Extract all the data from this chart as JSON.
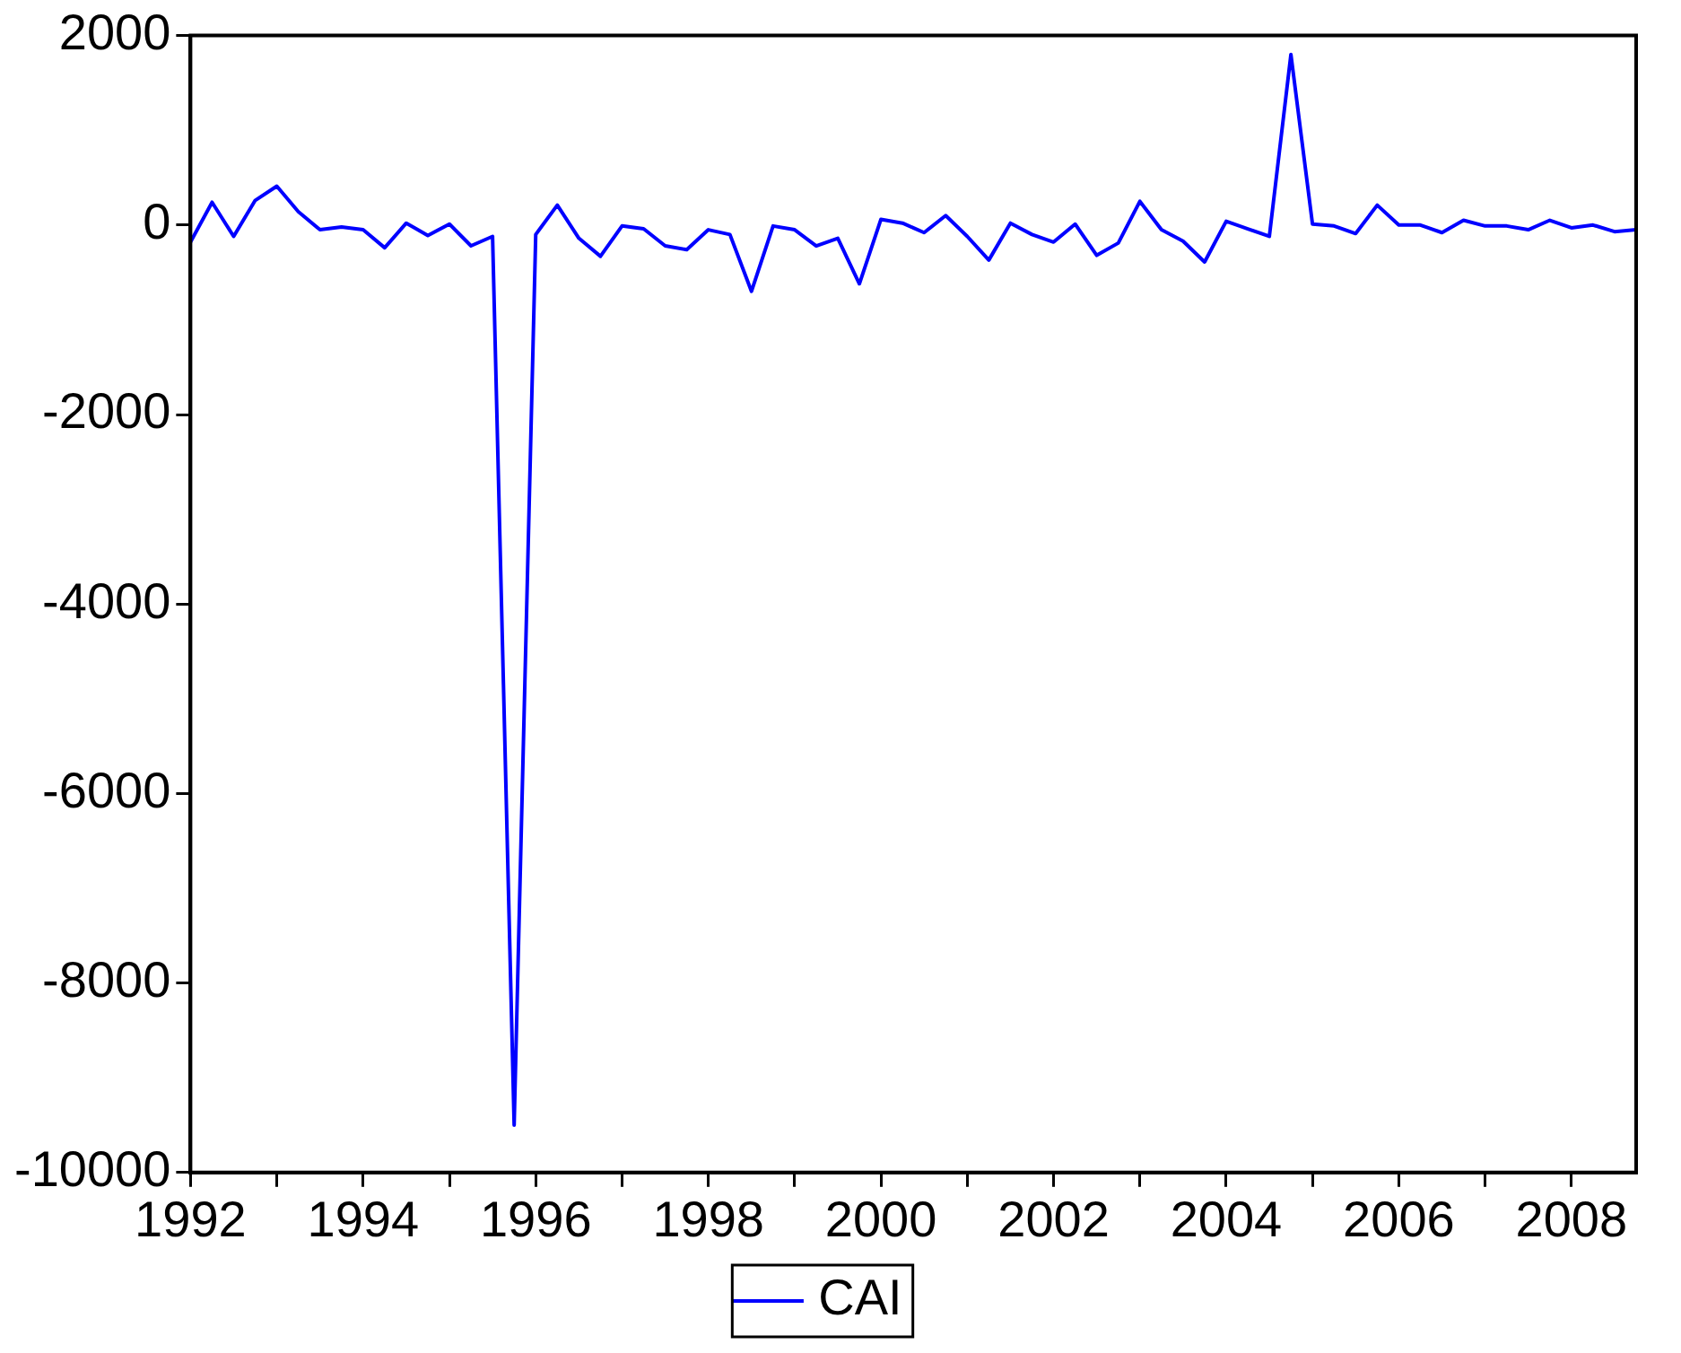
{
  "chart_data": {
    "type": "line",
    "x": [
      1992,
      1992.25,
      1992.5,
      1992.75,
      1993,
      1993.25,
      1993.5,
      1993.75,
      1994,
      1994.25,
      1994.5,
      1994.75,
      1995,
      1995.25,
      1995.5,
      1995.75,
      1996,
      1996.25,
      1996.5,
      1996.75,
      1997,
      1997.25,
      1997.5,
      1997.75,
      1998,
      1998.25,
      1998.5,
      1998.75,
      1999,
      1999.25,
      1999.5,
      1999.75,
      2000,
      2000.25,
      2000.5,
      2000.75,
      2001,
      2001.25,
      2001.5,
      2001.75,
      2002,
      2002.25,
      2002.5,
      2002.75,
      2003,
      2003.25,
      2003.5,
      2003.75,
      2004,
      2004.25,
      2004.5,
      2004.75,
      2005,
      2005.25,
      2005.5,
      2005.75,
      2006,
      2006.25,
      2006.5,
      2006.75,
      2007,
      2007.25,
      2007.5,
      2007.75,
      2008,
      2008.25,
      2008.5,
      2008.75
    ],
    "series": [
      {
        "name": "CAI",
        "color": "#0000ff",
        "values": [
          -180,
          240,
          -120,
          260,
          410,
          140,
          -50,
          -20,
          -50,
          -240,
          20,
          -110,
          10,
          -220,
          -120,
          -9500,
          -100,
          210,
          -140,
          -330,
          -10,
          -40,
          -220,
          -260,
          -50,
          -100,
          -700,
          -10,
          -50,
          -220,
          -140,
          -620,
          60,
          20,
          -80,
          100,
          -120,
          -370,
          20,
          -100,
          -180,
          10,
          -320,
          -190,
          250,
          -50,
          -170,
          -390,
          40,
          -40,
          -120,
          1800,
          10,
          -10,
          -90,
          210,
          0,
          0,
          -80,
          50,
          -10,
          -10,
          -50,
          50,
          -30,
          0,
          -70,
          -50
        ]
      }
    ],
    "xlim": [
      1992,
      2008.75
    ],
    "xticks": [
      1992,
      {
        "value": 1993,
        "label": null
      },
      1994,
      {
        "value": 1995,
        "label": null
      },
      1996,
      {
        "value": 1997,
        "label": null
      },
      1998,
      {
        "value": 1999,
        "label": null
      },
      2000,
      {
        "value": 2001,
        "label": null
      },
      2002,
      {
        "value": 2003,
        "label": null
      },
      2004,
      {
        "value": 2005,
        "label": null
      },
      2006,
      {
        "value": 2007,
        "label": null
      },
      2008
    ],
    "ylim": [
      -10000,
      2000
    ],
    "yticks": [
      -10000,
      -8000,
      -6000,
      -4000,
      -2000,
      0,
      2000
    ],
    "grid": false,
    "legend": "bottom",
    "marker": "none",
    "line_style": "solid"
  }
}
